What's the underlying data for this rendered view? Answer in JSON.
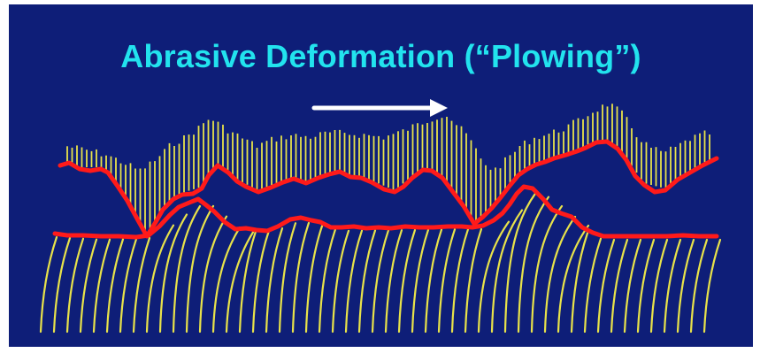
{
  "slide": {
    "title": "Abrasive Deformation (“Plowing”)",
    "background_color": "#0e1e78",
    "title_color": "#22e3ee"
  },
  "diagram": {
    "arrow": {
      "direction": "right",
      "color": "#ffffff"
    },
    "hatching": {
      "color": "#e8e24a"
    },
    "profile_lines": {
      "color": "#ff1a1a"
    }
  }
}
